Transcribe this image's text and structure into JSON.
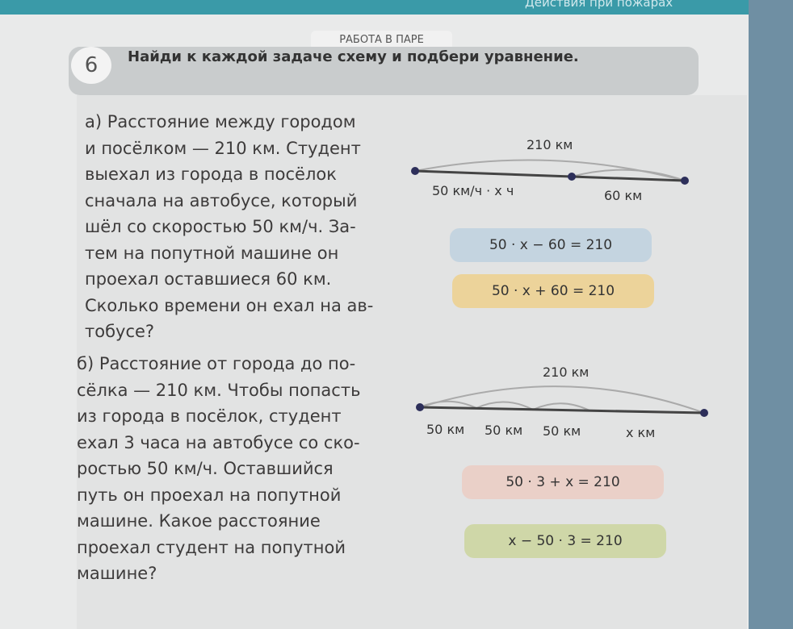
{
  "header_band": "Действия при пожарах",
  "tab": "РАБОТА В ПАРЕ",
  "exercise_number": "6",
  "instruction": "Найди к каждой задаче схему и подбери уравнение.",
  "task_a": {
    "lines": [
      "а) Расстояние между городом",
      "и посёлком — 210 км. Студент",
      "выехал из города в посёлок",
      "сначала на автобусе, который",
      "шёл со скоростью 50 км/ч. За-",
      "тем на попутной машине он",
      "проехал оставшиеся 60 км.",
      "Сколько времени он ехал на ав-",
      "тобусе?"
    ],
    "scheme": {
      "total": "210 км",
      "part1": "50 км/ч · x ч",
      "part2": "60 км"
    },
    "equations": [
      {
        "text": "50 · x − 60 = 210",
        "color": "#c4d4e0"
      },
      {
        "text": "50 · x + 60 = 210",
        "color": "#ecd39a"
      }
    ]
  },
  "task_b": {
    "lines": [
      "б) Расстояние от города до по-",
      "сёлка — 210 км. Чтобы попасть",
      "из города в посёлок, студент",
      "ехал 3 часа на автобусе со ско-",
      "ростью 50 км/ч. Оставшийся",
      "путь он проехал на попутной",
      "машине. Какое расстояние",
      "проехал студент на попутной",
      "машине?"
    ],
    "scheme": {
      "total": "210 км",
      "parts": [
        "50 км",
        "50 км",
        "50 км",
        "x км"
      ]
    },
    "equations": [
      {
        "text": "50 · 3 + x = 210",
        "color": "#ead0c8"
      },
      {
        "text": "x − 50 · 3 = 210",
        "color": "#cfd7a8"
      }
    ]
  }
}
